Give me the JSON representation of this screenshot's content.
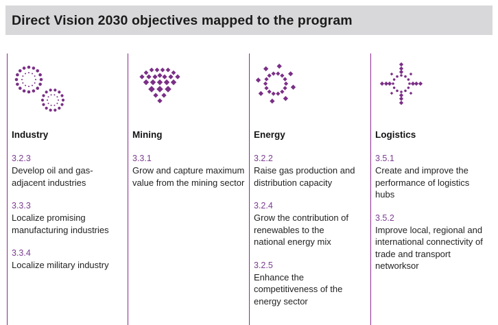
{
  "header": {
    "title": "Direct Vision 2030 objectives mapped to the program"
  },
  "colors": {
    "accent": "#7a2f86",
    "code": "#7a3c8f",
    "banner": "#d8d8da"
  },
  "columns": [
    {
      "icon": "gears-icon",
      "title": "Industry",
      "objectives": [
        {
          "code": "3.2.3",
          "text": "Develop oil and gas-adjacent industries"
        },
        {
          "code": "3.3.3",
          "text": "Localize promising manufacturing industries"
        },
        {
          "code": "3.3.4",
          "text": "Localize military industry"
        }
      ]
    },
    {
      "icon": "diamond-icon",
      "title": "Mining",
      "objectives": [
        {
          "code": "3.3.1",
          "text": "Grow and capture maximum value from the mining sector"
        }
      ]
    },
    {
      "icon": "sun-icon",
      "title": "Energy",
      "objectives": [
        {
          "code": "3.2.2",
          "text": "Raise gas production and distribution capacity"
        },
        {
          "code": "3.2.4",
          "text": "Grow the contribution of renewables to the national energy mix"
        },
        {
          "code": "3.2.5",
          "text": "Enhance the competitiveness of the energy sector"
        }
      ]
    },
    {
      "icon": "compass-icon",
      "title": "Logistics",
      "objectives": [
        {
          "code": "3.5.1",
          "text": "Create and improve the performance of logistics hubs"
        },
        {
          "code": "3.5.2",
          "text": "Improve local, regional and international connectivity of trade and transport networksor"
        }
      ]
    }
  ]
}
